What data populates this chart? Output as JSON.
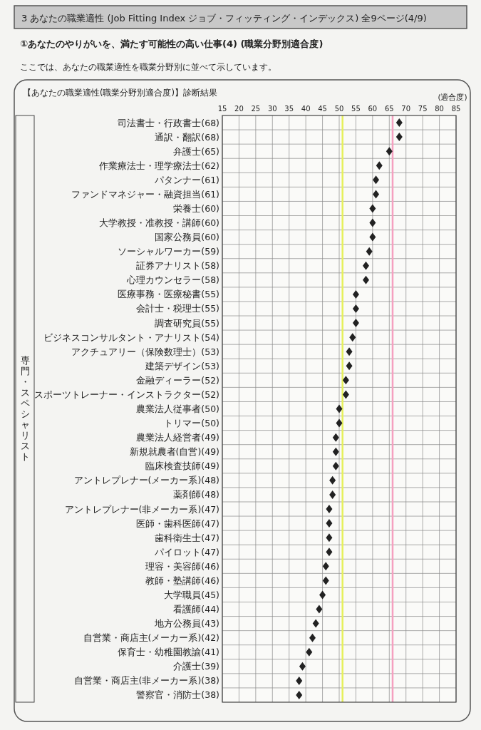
{
  "chart_data": {
    "type": "scatter",
    "orientation": "horizontal",
    "title": "3 あなたの職業適性 (Job Fitting Index ジョブ・フィッティング・インデックス) 全9ページ(4/9)",
    "subtitle": "①あなたのやりがいを、満たす可能性の高い仕事(4) (職業分野別適合度)",
    "annotations": [
      "ここでは、あなたの職業適性を職業分野別に並べて示しています。",
      "【あなたの職業適性(職業分野別適合度)】診断結果",
      "専門・スペシャリスト"
    ],
    "xlabel": "(適合度)",
    "categories": [
      "司法書士・行政書士(68)",
      "通訳・翻訳(68)",
      "弁護士(65)",
      "作業療法士・理学療法士(62)",
      "パタンナー(61)",
      "ファンドマネジャー・融資担当(61)",
      "栄養士(60)",
      "大学教授・准教授・講師(60)",
      "国家公務員(60)",
      "ソーシャルワーカー(59)",
      "証券アナリスト(58)",
      "心理カウンセラー(58)",
      "医療事務・医療秘書(55)",
      "会計士・税理士(55)",
      "調査研究員(55)",
      "ビジネスコンサルタント・アナリスト(54)",
      "アクチュアリー（保険数理士）(53)",
      "建築デザイン(53)",
      "金融ディーラー(52)",
      "スポーツトレーナー・インストラクター(52)",
      "農業法人従事者(50)",
      "トリマー(50)",
      "農業法人経営者(49)",
      "新規就農者(自営)(49)",
      "臨床検査技師(49)",
      "アントレプレナー(メーカー系)(48)",
      "薬剤師(48)",
      "アントレプレナー(非メーカー系)(47)",
      "医師・歯科医師(47)",
      "歯科衛生士(47)",
      "パイロット(47)",
      "理容・美容師(46)",
      "教師・塾講師(46)",
      "大学職員(45)",
      "看護師(44)",
      "地方公務員(43)",
      "自営業・商店主(メーカー系)(42)",
      "保育士・幼稚園教諭(41)",
      "介護士(39)",
      "自営業・商店主(非メーカー系)(38)",
      "警察官・消防士(38)"
    ],
    "values": [
      68,
      68,
      65,
      62,
      61,
      61,
      60,
      60,
      60,
      59,
      58,
      58,
      55,
      55,
      55,
      54,
      53,
      53,
      52,
      52,
      50,
      50,
      49,
      49,
      49,
      48,
      48,
      47,
      47,
      47,
      47,
      46,
      46,
      45,
      44,
      43,
      42,
      41,
      39,
      38,
      38
    ],
    "color": "#222222",
    "marker": "diamond",
    "xlim": [
      15,
      85
    ],
    "xticks": [
      15,
      20,
      25,
      30,
      35,
      40,
      45,
      50,
      55,
      60,
      65,
      70,
      75,
      80,
      85
    ],
    "grid": true,
    "ref_lines": [
      {
        "axis": "x",
        "value": 51,
        "color": "#e6f05a"
      },
      {
        "axis": "x",
        "value": 66,
        "color": "#f5a0c0"
      }
    ]
  }
}
